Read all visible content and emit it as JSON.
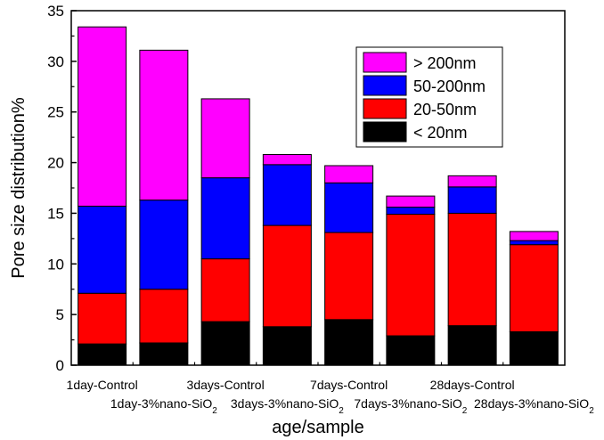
{
  "chart_data": {
    "type": "bar",
    "stacked": true,
    "xlabel": "age/sample",
    "ylabel": "Pore size distribution%",
    "ylim": [
      0,
      35
    ],
    "yticks": [
      "0",
      "5",
      "10",
      "15",
      "20",
      "25",
      "30",
      "35"
    ],
    "categories": [
      "1day-Control",
      "1day-3%nano-SiO2",
      "3days-Control",
      "3days-3%nano-SiO2",
      "7days-Control",
      "7days-3%nano-SiO2",
      "28days-Control",
      "28days-3%nano-SiO2"
    ],
    "category_label_parts": [
      {
        "text": "1day-Control",
        "sub": ""
      },
      {
        "text": "1day-3%nano-SiO",
        "sub": "2"
      },
      {
        "text": "3days-Control",
        "sub": ""
      },
      {
        "text": "3days-3%nano-SiO",
        "sub": "2"
      },
      {
        "text": "7days-Control",
        "sub": ""
      },
      {
        "text": "7days-3%nano-SiO",
        "sub": "2"
      },
      {
        "text": "28days-Control",
        "sub": ""
      },
      {
        "text": "28days-3%nano-SiO",
        "sub": "2"
      }
    ],
    "series": [
      {
        "name": "< 20nm",
        "color": "#000000",
        "values": [
          2.1,
          2.2,
          4.3,
          3.8,
          4.5,
          2.9,
          3.9,
          3.3
        ]
      },
      {
        "name": "20-50nm",
        "color": "#ff0000",
        "values": [
          5.0,
          5.3,
          6.2,
          10.0,
          8.6,
          12.0,
          11.1,
          8.6
        ]
      },
      {
        "name": "50-200nm",
        "color": "#0000ff",
        "values": [
          8.6,
          8.8,
          8.0,
          6.0,
          4.9,
          0.7,
          2.6,
          0.4
        ]
      },
      {
        "name": "> 200nm",
        "color": "#ff00ff",
        "values": [
          17.7,
          14.8,
          7.8,
          1.0,
          1.7,
          1.1,
          1.1,
          0.9
        ]
      }
    ],
    "legend_order": [
      "> 200nm",
      "50-200nm",
      "20-50nm",
      "< 20nm"
    ],
    "legend_position": "top-right"
  }
}
